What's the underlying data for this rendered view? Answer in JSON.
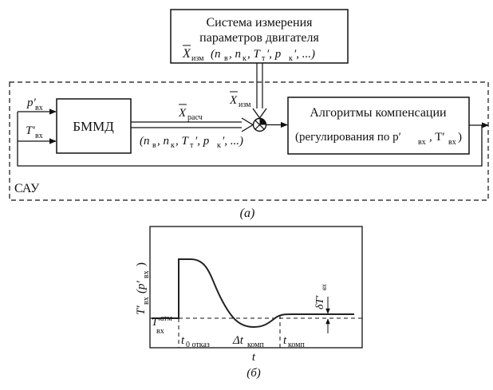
{
  "diagram_a": {
    "measurement_system": {
      "line1": "Система измерения",
      "line2": "параметров двигателя",
      "line3_x": "X",
      "line3_sub": "изм",
      "line3_params": "(n",
      "line3_nv_sub": "в",
      "line3_comma1": ", n",
      "line3_nk_sub": "к",
      "line3_comma2": ", T",
      "line3_tt_sub": "т",
      "line3_prime1": "′, p",
      "line3_pk_sub": "к",
      "line3_end": "′, ...)"
    },
    "input_p": {
      "main": "p′",
      "sub": "вх"
    },
    "input_t": {
      "main": "T′",
      "sub": "вх"
    },
    "bmmd": "БММД",
    "x_calc": {
      "main": "X",
      "sub": "расч"
    },
    "x_meas": {
      "main": "X",
      "sub": "изм"
    },
    "calc_params": {
      "open": "(n",
      "s1": "в",
      "c1": ", n",
      "s2": "к",
      "c2": ", T",
      "s3": "т",
      "c3": "′, p",
      "s4": "к",
      "end": "′, ...)"
    },
    "compensation": {
      "line1": "Алгоритмы компенсации",
      "line2_pre": "(регулирования по  p′",
      "line2_s1": "вх",
      "line2_mid": ", T′",
      "line2_s2": "вх",
      "line2_end": " )"
    },
    "sau": "САУ",
    "caption": "(а)"
  },
  "diagram_b": {
    "y_axis": {
      "main": "T′",
      "sub1": "вх",
      "paren": "(p′",
      "sub2": "вх",
      "close": ")"
    },
    "baseline_label": {
      "main": "T′",
      "sub": "вх",
      "sup": "атм"
    },
    "delta_label": {
      "main": "δT′",
      "sub": "вх"
    },
    "t0": {
      "main": "t",
      "sub": "0 отказ"
    },
    "dt": {
      "main": "Δt",
      "sub": "комп"
    },
    "tk": {
      "main": "t",
      "sub": "комп"
    },
    "x_axis": "t",
    "caption": "(б)"
  }
}
